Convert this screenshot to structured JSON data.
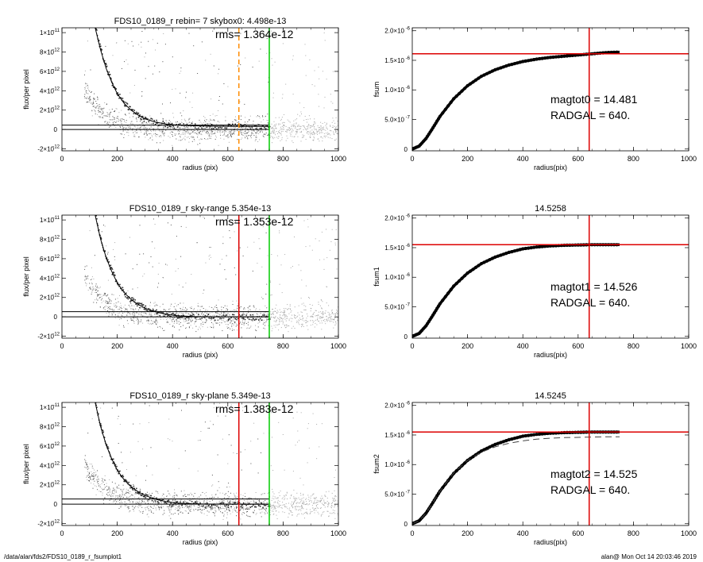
{
  "footer": {
    "path": "/data/alan/fds2/FDS10_0189_r_fsumplot1",
    "stamp": "alan@  Mon Oct 14 20:03:46 2019"
  },
  "chart_data": [
    {
      "type": "scatter",
      "title": "FDS10_0189_r rebin= 7    skybox0:  4.498e-13",
      "annotation": "rms= 1.364e-12",
      "xlabel": "radius (pix)",
      "ylabel": "flux/per pixel",
      "xlim": [
        0,
        1000
      ],
      "ylim": [
        -2.2e-12,
        1.05e-11
      ],
      "xticks": [
        0,
        200,
        400,
        600,
        800,
        1000
      ],
      "yticks": [
        {
          "v": 1e-11,
          "m": "1×10",
          "e": "-11"
        },
        {
          "v": 8e-12,
          "m": "8×10",
          "e": "-12"
        },
        {
          "v": 6e-12,
          "m": "6×10",
          "e": "-12"
        },
        {
          "v": 4e-12,
          "m": "4×10",
          "e": "-12"
        },
        {
          "v": 2e-12,
          "m": "2×10",
          "e": "-12"
        },
        {
          "v": 0,
          "m": "0",
          "e": ""
        },
        {
          "v": -2e-12,
          "m": "-2×10",
          "e": "-12"
        }
      ],
      "profile": {
        "x": [
          120,
          140,
          160,
          180,
          200,
          225,
          250,
          275,
          300,
          340,
          380,
          420,
          480,
          540,
          600,
          650,
          700,
          750
        ],
        "y": [
          1.05e-11,
          8.2e-12,
          6.3e-12,
          4.9e-12,
          3.7e-12,
          2.7e-12,
          2e-12,
          1.5e-12,
          1.1e-12,
          7.5e-13,
          5.5e-13,
          4.5e-13,
          3.8e-13,
          3.5e-13,
          3.3e-13,
          3.2e-13,
          3.2e-13,
          3.1e-13
        ]
      },
      "hlines": [
        {
          "y": 4.498e-13,
          "color": "#000000",
          "x": [
            0,
            750
          ]
        },
        {
          "y": 0,
          "color": "#000000",
          "x": [
            0,
            750
          ]
        }
      ],
      "vlines": [
        {
          "x": 640,
          "color": "#ff8c00",
          "dash": true
        },
        {
          "x": 750,
          "color": "#00cc00"
        }
      ],
      "scatter_colors": [
        "#555555",
        "#aaaaaa"
      ]
    },
    {
      "type": "line",
      "title": "",
      "xlabel": "radius(pix)",
      "ylabel": "fsum",
      "xlim": [
        0,
        1000
      ],
      "ylim": [
        -3e-08,
        2.05e-06
      ],
      "xticks": [
        0,
        200,
        400,
        600,
        800,
        1000
      ],
      "yticks": [
        {
          "v": 2e-06,
          "m": "2.0×10",
          "e": "-6"
        },
        {
          "v": 1.5e-06,
          "m": "1.5×10",
          "e": "-6"
        },
        {
          "v": 1e-06,
          "m": "1.0×10",
          "e": "-6"
        },
        {
          "v": 5e-07,
          "m": "5.0×10",
          "e": "-7"
        },
        {
          "v": 0,
          "m": "0",
          "e": ""
        }
      ],
      "curve": {
        "x": [
          0,
          25,
          50,
          75,
          100,
          150,
          200,
          250,
          300,
          350,
          400,
          450,
          500,
          550,
          600,
          650,
          700,
          750
        ],
        "y": [
          0,
          5e-08,
          1.8e-07,
          3.6e-07,
          5.5e-07,
          8.5e-07,
          1.07e-06,
          1.23e-06,
          1.34e-06,
          1.42e-06,
          1.48e-06,
          1.52e-06,
          1.55e-06,
          1.57e-06,
          1.59e-06,
          1.61e-06,
          1.63e-06,
          1.64e-06
        ]
      },
      "hline": 1.61e-06,
      "vline": 640,
      "labels": [
        "magtot0 =  14.481",
        "RADGAL =    640."
      ]
    },
    {
      "type": "scatter",
      "title": "FDS10_0189_r sky-range  5.354e-13",
      "annotation": "rms= 1.353e-12",
      "xlabel": "radius (pix)",
      "ylabel": "flux/per pixel",
      "xlim": [
        0,
        1000
      ],
      "ylim": [
        -2.2e-12,
        1.05e-11
      ],
      "xticks": [
        0,
        200,
        400,
        600,
        800,
        1000
      ],
      "yticks": [
        {
          "v": 1e-11,
          "m": "1×10",
          "e": "-11"
        },
        {
          "v": 8e-12,
          "m": "8×10",
          "e": "-12"
        },
        {
          "v": 6e-12,
          "m": "6×10",
          "e": "-12"
        },
        {
          "v": 4e-12,
          "m": "4×10",
          "e": "-12"
        },
        {
          "v": 2e-12,
          "m": "2×10",
          "e": "-12"
        },
        {
          "v": 0,
          "m": "0",
          "e": ""
        },
        {
          "v": -2e-12,
          "m": "-2×10",
          "e": "-12"
        }
      ],
      "profile": {
        "x": [
          120,
          140,
          160,
          180,
          200,
          225,
          250,
          275,
          300,
          340,
          380,
          420,
          480,
          540,
          600,
          650,
          700,
          750
        ],
        "y": [
          1.05e-11,
          8e-12,
          6.1e-12,
          4.7e-12,
          3.5e-12,
          2.5e-12,
          1.8e-12,
          1.3e-12,
          9e-13,
          5e-13,
          2.5e-13,
          1e-13,
          3e-14,
          1e-14,
          0,
          0,
          0,
          0
        ]
      },
      "hlines": [
        {
          "y": 5.354e-13,
          "color": "#000000",
          "x": [
            0,
            750
          ]
        },
        {
          "y": 0,
          "color": "#000000",
          "x": [
            0,
            750
          ]
        }
      ],
      "vlines": [
        {
          "x": 640,
          "color": "#dd0000"
        },
        {
          "x": 750,
          "color": "#00cc00"
        }
      ],
      "scatter_colors": [
        "#555555",
        "#aaaaaa"
      ]
    },
    {
      "type": "line",
      "title": "14.5258",
      "xlabel": "radius(pix)",
      "ylabel": "fsum1",
      "xlim": [
        0,
        1000
      ],
      "ylim": [
        -3e-08,
        2.05e-06
      ],
      "xticks": [
        0,
        200,
        400,
        600,
        800,
        1000
      ],
      "yticks": [
        {
          "v": 2e-06,
          "m": "2.0×10",
          "e": "-6"
        },
        {
          "v": 1.5e-06,
          "m": "1.5×10",
          "e": "-6"
        },
        {
          "v": 1e-06,
          "m": "1.0×10",
          "e": "-6"
        },
        {
          "v": 5e-07,
          "m": "5.0×10",
          "e": "-7"
        },
        {
          "v": 0,
          "m": "0",
          "e": ""
        }
      ],
      "curve": {
        "x": [
          0,
          25,
          50,
          75,
          100,
          150,
          200,
          250,
          300,
          350,
          400,
          450,
          500,
          550,
          600,
          650,
          700,
          750
        ],
        "y": [
          0,
          5e-08,
          1.8e-07,
          3.6e-07,
          5.5e-07,
          8.5e-07,
          1.07e-06,
          1.23e-06,
          1.34e-06,
          1.42e-06,
          1.48e-06,
          1.51e-06,
          1.53e-06,
          1.54e-06,
          1.545e-06,
          1.55e-06,
          1.55e-06,
          1.55e-06
        ]
      },
      "hline": 1.55e-06,
      "vline": 640,
      "labels": [
        "magtot1 =  14.526",
        "RADGAL =    640."
      ]
    },
    {
      "type": "scatter",
      "title": "FDS10_0189_r sky-plane  5.349e-13",
      "annotation": "rms= 1.383e-12",
      "xlabel": "radius (pix)",
      "ylabel": "flux/per pixel",
      "xlim": [
        0,
        1000
      ],
      "ylim": [
        -2.2e-12,
        1.05e-11
      ],
      "xticks": [
        0,
        200,
        400,
        600,
        800,
        1000
      ],
      "yticks": [
        {
          "v": 1e-11,
          "m": "1×10",
          "e": "-11"
        },
        {
          "v": 8e-12,
          "m": "8×10",
          "e": "-12"
        },
        {
          "v": 6e-12,
          "m": "6×10",
          "e": "-12"
        },
        {
          "v": 4e-12,
          "m": "4×10",
          "e": "-12"
        },
        {
          "v": 2e-12,
          "m": "2×10",
          "e": "-12"
        },
        {
          "v": 0,
          "m": "0",
          "e": ""
        },
        {
          "v": -2e-12,
          "m": "-2×10",
          "e": "-12"
        }
      ],
      "profile": {
        "x": [
          120,
          140,
          160,
          180,
          200,
          225,
          250,
          275,
          300,
          340,
          380,
          420,
          480,
          540,
          600,
          650,
          700,
          750
        ],
        "y": [
          1.05e-11,
          8e-12,
          6.1e-12,
          4.7e-12,
          3.5e-12,
          2.5e-12,
          1.8e-12,
          1.3e-12,
          9e-13,
          5e-13,
          2.5e-13,
          1e-13,
          3e-14,
          1e-14,
          0,
          0,
          0,
          0
        ]
      },
      "hlines": [
        {
          "y": 5.349e-13,
          "color": "#000000",
          "x": [
            0,
            750
          ]
        },
        {
          "y": 0,
          "color": "#000000",
          "x": [
            0,
            750
          ]
        }
      ],
      "vlines": [
        {
          "x": 640,
          "color": "#dd0000"
        },
        {
          "x": 750,
          "color": "#00cc00"
        }
      ],
      "scatter_colors": [
        "#555555",
        "#aaaaaa"
      ]
    },
    {
      "type": "line",
      "title": "14.5245",
      "xlabel": "radius(pix)",
      "ylabel": "fsum2",
      "xlim": [
        0,
        1000
      ],
      "ylim": [
        -3e-08,
        2.05e-06
      ],
      "xticks": [
        0,
        200,
        400,
        600,
        800,
        1000
      ],
      "yticks": [
        {
          "v": 2e-06,
          "m": "2.0×10",
          "e": "-6"
        },
        {
          "v": 1.5e-06,
          "m": "1.5×10",
          "e": "-6"
        },
        {
          "v": 1e-06,
          "m": "1.0×10",
          "e": "-6"
        },
        {
          "v": 5e-07,
          "m": "5.0×10",
          "e": "-7"
        },
        {
          "v": 0,
          "m": "0",
          "e": ""
        }
      ],
      "curve": {
        "x": [
          0,
          25,
          50,
          75,
          100,
          150,
          200,
          250,
          300,
          350,
          400,
          450,
          500,
          550,
          600,
          650,
          700,
          750
        ],
        "y": [
          0,
          5e-08,
          1.8e-07,
          3.6e-07,
          5.5e-07,
          8.5e-07,
          1.07e-06,
          1.23e-06,
          1.34e-06,
          1.42e-06,
          1.48e-06,
          1.51e-06,
          1.53e-06,
          1.54e-06,
          1.545e-06,
          1.55e-06,
          1.55e-06,
          1.55e-06
        ]
      },
      "dashed_curve": {
        "x": [
          0,
          25,
          50,
          75,
          100,
          150,
          200,
          250,
          300,
          350,
          400,
          450,
          500,
          550,
          600,
          650,
          700,
          750
        ],
        "y": [
          0,
          5e-08,
          1.8e-07,
          3.6e-07,
          5.5e-07,
          8.6e-07,
          1.07e-06,
          1.21e-06,
          1.3e-06,
          1.36e-06,
          1.4e-06,
          1.43e-06,
          1.445e-06,
          1.455e-06,
          1.46e-06,
          1.465e-06,
          1.47e-06,
          1.47e-06
        ]
      },
      "hline": 1.55e-06,
      "vline": 640,
      "labels": [
        "magtot2 =  14.525",
        "RADGAL =    640."
      ]
    }
  ]
}
